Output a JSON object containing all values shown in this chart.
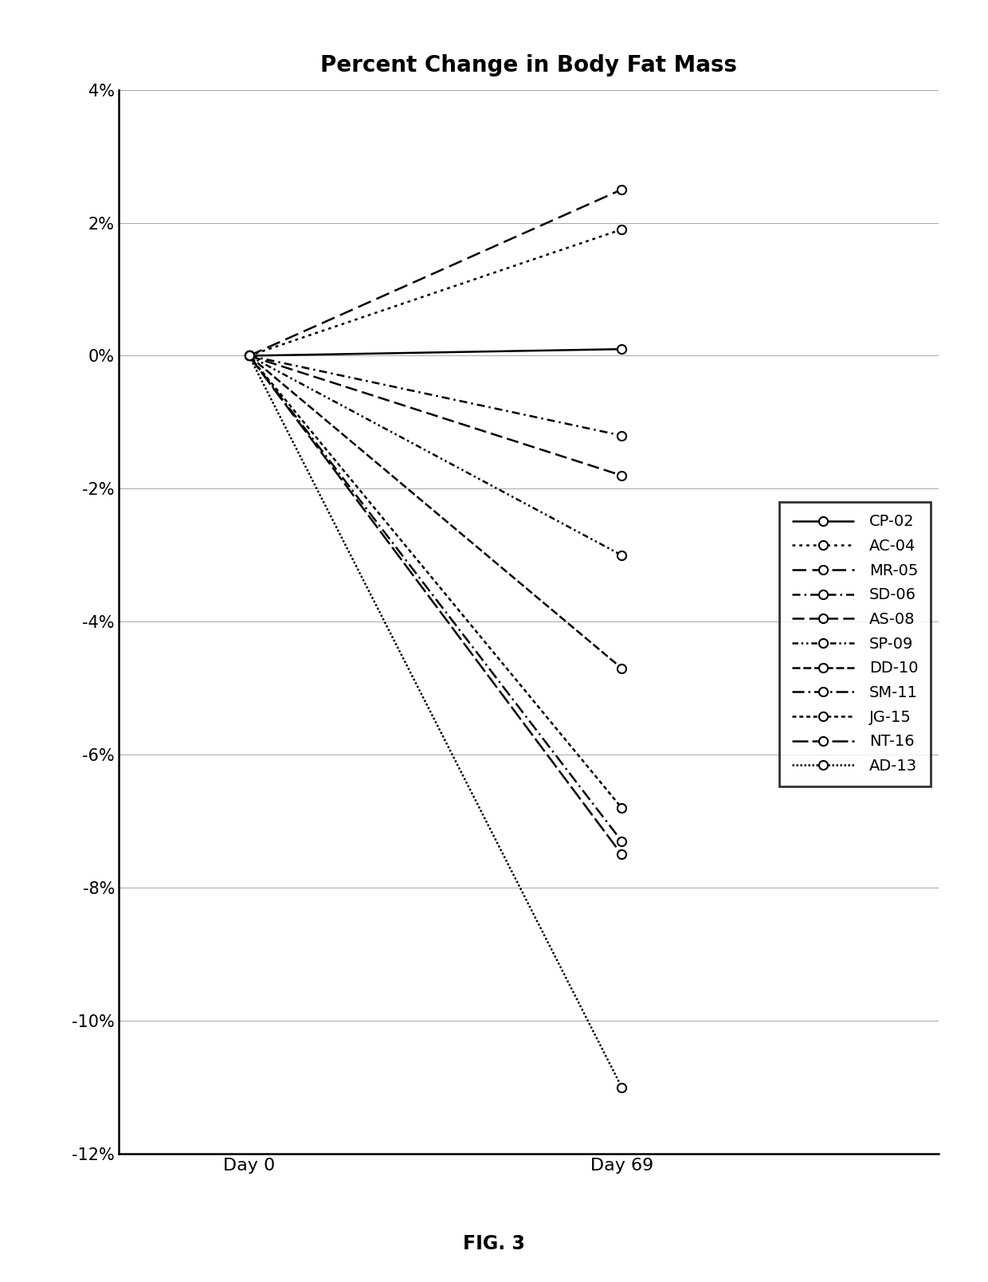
{
  "title": "Percent Change in Body Fat Mass",
  "xlabel_day0": "Day 0",
  "xlabel_day69": "Day 69",
  "fig3_label": "FIG. 3",
  "ylim": [
    -0.12,
    0.04
  ],
  "yticks": [
    -0.12,
    -0.1,
    -0.08,
    -0.06,
    -0.04,
    -0.02,
    0.0,
    0.02,
    0.04
  ],
  "ytick_labels": [
    "-12%",
    "-10%",
    "-8%",
    "-6%",
    "-4%",
    "-2%",
    "0%",
    "2%",
    "4%"
  ],
  "series": [
    {
      "label": "CP-02",
      "day0": 0.0,
      "day69": 0.001,
      "ls_key": "solid"
    },
    {
      "label": "AC-04",
      "day0": 0.0,
      "day69": 0.019,
      "ls_key": "dotted"
    },
    {
      "label": "MR-05",
      "day0": 0.0,
      "day69": 0.025,
      "ls_key": "dashed"
    },
    {
      "label": "SD-06",
      "day0": 0.0,
      "day69": -0.012,
      "ls_key": "dashdot"
    },
    {
      "label": "AS-08",
      "day0": 0.0,
      "day69": -0.018,
      "ls_key": "as08"
    },
    {
      "label": "SP-09",
      "day0": 0.0,
      "day69": -0.03,
      "ls_key": "sp09"
    },
    {
      "label": "DD-10",
      "day0": 0.0,
      "day69": -0.047,
      "ls_key": "dd10"
    },
    {
      "label": "SM-11",
      "day0": 0.0,
      "day69": -0.073,
      "ls_key": "sm11"
    },
    {
      "label": "JG-15",
      "day0": 0.0,
      "day69": -0.068,
      "ls_key": "jg15"
    },
    {
      "label": "NT-16",
      "day0": 0.0,
      "day69": -0.075,
      "ls_key": "nt16"
    },
    {
      "label": "AD-13",
      "day0": 0.0,
      "day69": -0.11,
      "ls_key": "ad13"
    }
  ],
  "background_color": "#ffffff",
  "title_fontsize": 20,
  "tick_fontsize": 15,
  "legend_fontsize": 14,
  "xtick_fontsize": 16
}
